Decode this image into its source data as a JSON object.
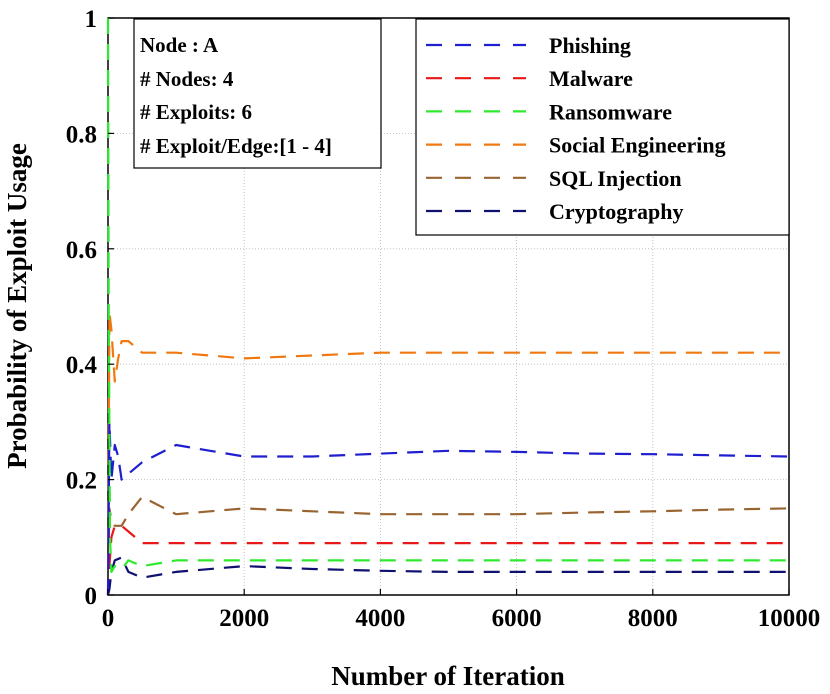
{
  "chart_data": {
    "type": "line",
    "title": "",
    "xlabel": "Number of Iteration",
    "ylabel": "Probability of Exploit Usage",
    "xlim": [
      0,
      10000
    ],
    "ylim": [
      0,
      1
    ],
    "x_ticks": [
      0,
      2000,
      4000,
      6000,
      8000,
      10000
    ],
    "y_ticks": [
      0,
      0.2,
      0.4,
      0.6,
      0.8,
      1
    ],
    "x_tick_labels": [
      "0",
      "2000",
      "4000",
      "6000",
      "8000",
      "10000"
    ],
    "y_tick_labels": [
      "0",
      "0.2",
      "0.4",
      "0.6",
      "0.8",
      "1"
    ],
    "grid": true,
    "legend_position": "top-right",
    "info_box": {
      "lines": [
        "Node : A",
        "# Nodes: 4",
        "# Exploits: 6",
        "# Exploit/Edge:[1 - 4]"
      ]
    },
    "series": [
      {
        "name": "Phishing",
        "color": "#1f1fd0",
        "x": [
          0,
          20,
          50,
          100,
          150,
          200,
          300,
          500,
          1000,
          1500,
          2000,
          3000,
          4000,
          5000,
          6000,
          7000,
          8000,
          9000,
          10000
        ],
        "y": [
          0,
          0.3,
          0.2,
          0.26,
          0.24,
          0.2,
          0.21,
          0.23,
          0.26,
          0.25,
          0.24,
          0.24,
          0.245,
          0.25,
          0.248,
          0.245,
          0.244,
          0.242,
          0.24
        ]
      },
      {
        "name": "Malware",
        "color": "#e81818",
        "x": [
          0,
          20,
          50,
          100,
          200,
          300,
          500,
          1000,
          2000,
          3000,
          4000,
          5000,
          6000,
          7000,
          8000,
          9000,
          10000
        ],
        "y": [
          0,
          0.05,
          0.1,
          0.12,
          0.12,
          0.11,
          0.09,
          0.09,
          0.09,
          0.09,
          0.09,
          0.09,
          0.09,
          0.09,
          0.09,
          0.09,
          0.09
        ]
      },
      {
        "name": "Ransomware",
        "color": "#2fe82f",
        "x": [
          0,
          10,
          30,
          50,
          100,
          200,
          300,
          500,
          1000,
          2000,
          3000,
          4000,
          5000,
          6000,
          7000,
          8000,
          9000,
          10000
        ],
        "y": [
          1,
          0.5,
          0.1,
          0.04,
          0.05,
          0.045,
          0.06,
          0.05,
          0.06,
          0.06,
          0.06,
          0.06,
          0.06,
          0.06,
          0.06,
          0.06,
          0.06,
          0.06
        ]
      },
      {
        "name": "Social Engineering",
        "color": "#f07810",
        "x": [
          0,
          20,
          50,
          100,
          150,
          200,
          300,
          500,
          1000,
          2000,
          3000,
          4000,
          5000,
          6000,
          7000,
          8000,
          9000,
          10000
        ],
        "y": [
          0,
          0.49,
          0.46,
          0.37,
          0.41,
          0.44,
          0.44,
          0.42,
          0.42,
          0.41,
          0.415,
          0.42,
          0.42,
          0.42,
          0.42,
          0.42,
          0.42,
          0.42
        ]
      },
      {
        "name": "SQL Injection",
        "color": "#9a6430",
        "x": [
          0,
          20,
          50,
          100,
          200,
          300,
          500,
          1000,
          2000,
          3000,
          4000,
          5000,
          6000,
          7000,
          8000,
          9000,
          10000
        ],
        "y": [
          0,
          0.15,
          0.13,
          0.12,
          0.12,
          0.14,
          0.17,
          0.14,
          0.15,
          0.145,
          0.14,
          0.14,
          0.14,
          0.143,
          0.145,
          0.148,
          0.15
        ]
      },
      {
        "name": "Cryptography",
        "color": "#101070",
        "x": [
          0,
          20,
          50,
          100,
          200,
          300,
          500,
          1000,
          2000,
          3000,
          4000,
          5000,
          6000,
          7000,
          8000,
          9000,
          10000
        ],
        "y": [
          0,
          0.01,
          0.04,
          0.06,
          0.065,
          0.04,
          0.03,
          0.04,
          0.05,
          0.045,
          0.042,
          0.04,
          0.04,
          0.04,
          0.04,
          0.04,
          0.04
        ]
      }
    ]
  }
}
